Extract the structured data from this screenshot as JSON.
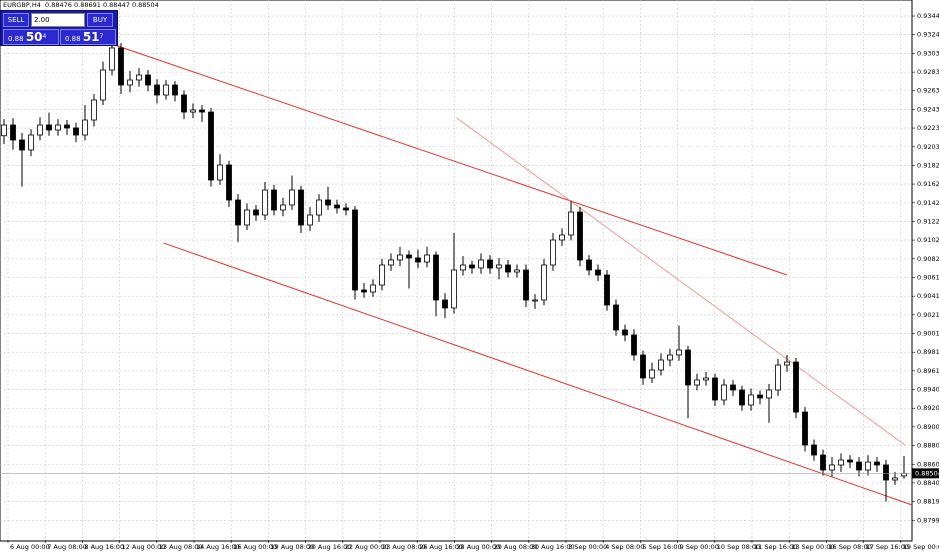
{
  "chart_data": {
    "type": "candlestick",
    "header": "EURGBP,H4",
    "ylim": [
      0.87784,
      0.93616
    ],
    "yticks": [
      0.93443,
      0.93241,
      0.93039,
      0.92837,
      0.92636,
      0.92434,
      0.92233,
      0.92031,
      0.91829,
      0.91628,
      0.91426,
      0.91224,
      0.91023,
      0.90821,
      0.90619,
      0.90417,
      0.90216,
      0.90014,
      0.89812,
      0.89611,
      0.89409,
      0.89207,
      0.89006,
      0.88804,
      0.88602,
      0.88401,
      0.88199,
      0.87997
    ],
    "grid": true,
    "x_labels": [
      "6 Aug 00:00",
      "7 Aug 08:00",
      "8 Aug 16:00",
      "12 Aug 00:00",
      "13 Aug 08:00",
      "14 Aug 16:00",
      "16 Aug 00:00",
      "19 Aug 08:00",
      "20 Aug 16:00",
      "22 Aug 00:00",
      "23 Aug 08:00",
      "26 Aug 16:00",
      "28 Aug 00:00",
      "29 Aug 08:00",
      "30 Aug 16:00",
      "3 Sep 00:00",
      "4 Sep 08:00",
      "5 Sep 16:00",
      "9 Sep 00:00",
      "10 Sep 08:00",
      "11 Sep 16:00",
      "13 Sep 00:00",
      "16 Sep 08:00",
      "17 Sep 16:00",
      "19 Sep 00:00"
    ],
    "open": [
      0.9215,
      0.92266,
      0.92104,
      0.91996,
      0.92158,
      0.92266,
      0.92212,
      0.92266,
      0.92234,
      0.92158,
      0.9232,
      0.92536,
      0.9286,
      0.93098,
      0.92698,
      0.92752,
      0.92806,
      0.92698,
      0.9259,
      0.92698,
      0.9259,
      0.92406,
      0.92428,
      0.92406,
      0.91672,
      0.91834,
      0.91456,
      0.91186,
      0.91348,
      0.91294,
      0.91564,
      0.91348,
      0.91402,
      0.91564,
      0.91186,
      0.91294,
      0.91456,
      0.91402,
      0.9137,
      0.91348,
      0.90484,
      0.90462,
      0.90538,
      0.90754,
      0.90808,
      0.90862,
      0.9083,
      0.90786,
      0.90862,
      0.90376,
      0.9029,
      0.907,
      0.90754,
      0.90722,
      0.90808,
      0.90722,
      0.90754,
      0.90678,
      0.907,
      0.90376,
      0.90376,
      0.90754,
      0.91024,
      0.91078,
      0.91326,
      0.90808,
      0.907,
      0.90646,
      0.90322,
      0.90052,
      0.89998,
      0.89782,
      0.89534,
      0.8962,
      0.89728,
      0.89782,
      0.89836,
      0.89458,
      0.89512,
      0.89534,
      0.89296,
      0.89458,
      0.89404,
      0.89242,
      0.8935,
      0.89318,
      0.89404,
      0.89674,
      0.89706,
      0.89166,
      0.8881,
      0.88702,
      0.8854,
      0.88594,
      0.88648,
      0.88626,
      0.8854,
      0.88626,
      0.88594,
      0.88432,
      0.88476
    ],
    "high": [
      0.9233,
      0.9234,
      0.9218,
      0.9222,
      0.9235,
      0.924,
      0.9233,
      0.9232,
      0.9229,
      0.9248,
      0.926,
      0.9295,
      0.932,
      0.9315,
      0.9285,
      0.9288,
      0.9286,
      0.9276,
      0.9275,
      0.9274,
      0.9264,
      0.925,
      0.9248,
      0.9245,
      0.9195,
      0.9188,
      0.9152,
      0.9142,
      0.914,
      0.9165,
      0.9162,
      0.9148,
      0.9172,
      0.9161,
      0.9138,
      0.9152,
      0.916,
      0.9146,
      0.9142,
      0.9139,
      0.9056,
      0.906,
      0.9082,
      0.9088,
      0.9095,
      0.9091,
      0.9092,
      0.9095,
      0.909,
      0.9045,
      0.911,
      0.9085,
      0.908,
      0.9088,
      0.9086,
      0.9083,
      0.9081,
      0.9076,
      0.9076,
      0.9044,
      0.9082,
      0.911,
      0.9115,
      0.9145,
      0.9138,
      0.9086,
      0.9076,
      0.907,
      0.9038,
      0.9011,
      0.9006,
      0.8983,
      0.897,
      0.898,
      0.8985,
      0.901,
      0.8988,
      0.8958,
      0.896,
      0.8958,
      0.8952,
      0.8951,
      0.8945,
      0.8942,
      0.894,
      0.8947,
      0.8974,
      0.8978,
      0.8975,
      0.8922,
      0.8887,
      0.8876,
      0.8868,
      0.8872,
      0.887,
      0.8868,
      0.887,
      0.8868,
      0.8865,
      0.8852,
      0.88691
    ],
    "low": [
      0.9206,
      0.92,
      0.916,
      0.9193,
      0.921,
      0.9215,
      0.9215,
      0.9216,
      0.9208,
      0.921,
      0.9225,
      0.9248,
      0.928,
      0.926,
      0.9262,
      0.9268,
      0.9263,
      0.925,
      0.9254,
      0.9252,
      0.9233,
      0.9234,
      0.923,
      0.916,
      0.9162,
      0.9138,
      0.91,
      0.9113,
      0.9123,
      0.9124,
      0.9129,
      0.9128,
      0.9135,
      0.911,
      0.9112,
      0.9122,
      0.9135,
      0.9131,
      0.9129,
      0.9038,
      0.904,
      0.9041,
      0.9048,
      0.9069,
      0.9074,
      0.905,
      0.9072,
      0.9073,
      0.902,
      0.9018,
      0.9023,
      0.9064,
      0.9066,
      0.9066,
      0.9066,
      0.906,
      0.9062,
      0.9062,
      0.903,
      0.9028,
      0.9032,
      0.9069,
      0.9096,
      0.9102,
      0.9074,
      0.9064,
      0.9058,
      0.9026,
      0.8999,
      0.8993,
      0.8972,
      0.8946,
      0.8948,
      0.8956,
      0.8966,
      0.8972,
      0.891,
      0.894,
      0.8945,
      0.8923,
      0.8924,
      0.8934,
      0.8918,
      0.8918,
      0.8925,
      0.8905,
      0.8934,
      0.896,
      0.891,
      0.8874,
      0.8864,
      0.8848,
      0.8847,
      0.8852,
      0.8856,
      0.8847,
      0.8848,
      0.8852,
      0.882,
      0.8838,
      0.88447
    ],
    "close": [
      0.92266,
      0.92104,
      0.91996,
      0.92158,
      0.92266,
      0.92212,
      0.92266,
      0.92234,
      0.92158,
      0.9232,
      0.92536,
      0.9286,
      0.93098,
      0.92698,
      0.92752,
      0.92806,
      0.92698,
      0.9259,
      0.92698,
      0.9259,
      0.92406,
      0.92428,
      0.92406,
      0.91672,
      0.91834,
      0.91456,
      0.91186,
      0.91348,
      0.91294,
      0.91564,
      0.91348,
      0.91402,
      0.91564,
      0.91186,
      0.91294,
      0.91456,
      0.91402,
      0.9137,
      0.91348,
      0.90484,
      0.90462,
      0.90538,
      0.90754,
      0.90808,
      0.90862,
      0.9083,
      0.90786,
      0.90862,
      0.90376,
      0.9029,
      0.907,
      0.90754,
      0.90722,
      0.90808,
      0.90722,
      0.90754,
      0.90678,
      0.907,
      0.90376,
      0.90376,
      0.90754,
      0.91024,
      0.91078,
      0.91326,
      0.90808,
      0.907,
      0.90646,
      0.90322,
      0.90052,
      0.89998,
      0.89782,
      0.89534,
      0.8962,
      0.89728,
      0.89782,
      0.89836,
      0.89458,
      0.89512,
      0.89534,
      0.89296,
      0.89458,
      0.89404,
      0.89242,
      0.8935,
      0.89318,
      0.89404,
      0.89674,
      0.89706,
      0.89166,
      0.8881,
      0.88702,
      0.8854,
      0.88594,
      0.88648,
      0.88626,
      0.8854,
      0.88626,
      0.88594,
      0.88432,
      0.88454,
      0.88504
    ],
    "trendlines": [
      {
        "color": "#e8302a",
        "x": [
          12.3,
          87
        ],
        "y": [
          0.9313,
          0.90646
        ]
      },
      {
        "color": "#e8302a",
        "x": [
          17.7,
          100.9
        ],
        "y": [
          0.90992,
          0.88162
        ]
      },
      {
        "color": "#f09a9a",
        "x": [
          50.3,
          100.1
        ],
        "y": [
          0.92342,
          0.8881
        ]
      }
    ]
  },
  "trade_panel": {
    "sell": "SELL",
    "lot": "2.00",
    "buy": "BUY",
    "bid": {
      "prefix": "0.88",
      "big": "50",
      "small": "4"
    },
    "ask": {
      "prefix": "0.88",
      "big": "51",
      "small": "7"
    }
  }
}
